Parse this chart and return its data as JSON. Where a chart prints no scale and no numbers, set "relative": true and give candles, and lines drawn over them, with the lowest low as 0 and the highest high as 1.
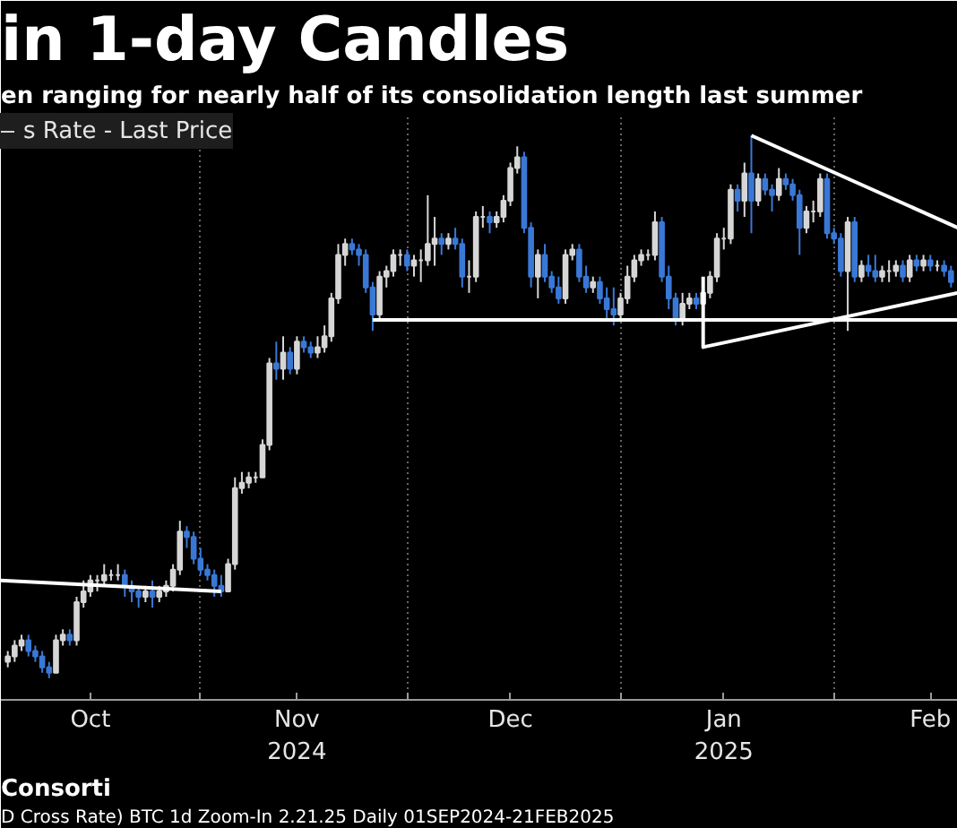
{
  "chart_data": {
    "type": "candlestick",
    "title": "in 1-day Candles",
    "subtitle": "en ranging for nearly half of its consolidation length last summer",
    "relative": true,
    "xlim": [
      "2024-10-03",
      "2025-02-19"
    ],
    "xticks": [
      {
        "value": "2024-10-16",
        "label": "Oct"
      },
      {
        "value": "2024-11-01",
        "label": null
      },
      {
        "value": "2024-11-15",
        "label": "Nov\n2024"
      },
      {
        "value": "2024-12-01",
        "label": null
      },
      {
        "value": "2024-12-16",
        "label": "Dec"
      },
      {
        "value": "2025-01-01",
        "label": null
      },
      {
        "value": "2025-01-16",
        "label": "Jan\n2025"
      },
      {
        "value": "2025-02-01",
        "label": null
      },
      {
        "value": "2025-02-15",
        "label": "Feb"
      }
    ],
    "grid": "x",
    "legend": "top left",
    "colors": [
      "#d6d6d6",
      "#3a78d6"
    ],
    "annotations": [
      "Consorti",
      "D Cross Rate) BTC 1d Zoom-In 2.21.25     Daily 01SEP2024-21FEB2025"
    ],
    "series": [
      {
        "name": "s Rate - Last Price",
        "x": [
          "2024-10-04",
          "2024-10-05",
          "2024-10-06",
          "2024-10-07",
          "2024-10-08",
          "2024-10-09",
          "2024-10-10",
          "2024-10-11",
          "2024-10-12",
          "2024-10-13",
          "2024-10-14",
          "2024-10-15",
          "2024-10-16",
          "2024-10-17",
          "2024-10-18",
          "2024-10-19",
          "2024-10-20",
          "2024-10-21",
          "2024-10-22",
          "2024-10-23",
          "2024-10-24",
          "2024-10-25",
          "2024-10-26",
          "2024-10-27",
          "2024-10-28",
          "2024-10-29",
          "2024-10-30",
          "2024-10-31",
          "2024-11-01",
          "2024-11-02",
          "2024-11-03",
          "2024-11-04",
          "2024-11-05",
          "2024-11-06",
          "2024-11-07",
          "2024-11-08",
          "2024-11-09",
          "2024-11-10",
          "2024-11-11",
          "2024-11-12",
          "2024-11-13",
          "2024-11-14",
          "2024-11-15",
          "2024-11-16",
          "2024-11-17",
          "2024-11-18",
          "2024-11-19",
          "2024-11-20",
          "2024-11-21",
          "2024-11-22",
          "2024-11-23",
          "2024-11-24",
          "2024-11-25",
          "2024-11-26",
          "2024-11-27",
          "2024-11-28",
          "2024-11-29",
          "2024-11-30",
          "2024-12-01",
          "2024-12-02",
          "2024-12-03",
          "2024-12-04",
          "2024-12-05",
          "2024-12-06",
          "2024-12-07",
          "2024-12-08",
          "2024-12-09",
          "2024-12-10",
          "2024-12-11",
          "2024-12-12",
          "2024-12-13",
          "2024-12-14",
          "2024-12-15",
          "2024-12-16",
          "2024-12-17",
          "2024-12-18",
          "2024-12-19",
          "2024-12-20",
          "2024-12-21",
          "2024-12-22",
          "2024-12-23",
          "2024-12-24",
          "2024-12-25",
          "2024-12-26",
          "2024-12-27",
          "2024-12-28",
          "2024-12-29",
          "2024-12-30",
          "2024-12-31",
          "2025-01-01",
          "2025-01-02",
          "2025-01-03",
          "2025-01-04",
          "2025-01-05",
          "2025-01-06",
          "2025-01-07",
          "2025-01-08",
          "2025-01-09",
          "2025-01-10",
          "2025-01-11",
          "2025-01-12",
          "2025-01-13",
          "2025-01-14",
          "2025-01-15",
          "2025-01-16",
          "2025-01-17",
          "2025-01-18",
          "2025-01-19",
          "2025-01-20",
          "2025-01-21",
          "2025-01-22",
          "2025-01-23",
          "2025-01-24",
          "2025-01-25",
          "2025-01-26",
          "2025-01-27",
          "2025-01-28",
          "2025-01-29",
          "2025-01-30",
          "2025-01-31",
          "2025-02-01",
          "2025-02-02",
          "2025-02-03",
          "2025-02-04",
          "2025-02-05",
          "2025-02-06",
          "2025-02-07",
          "2025-02-08",
          "2025-02-09",
          "2025-02-10",
          "2025-02-11",
          "2025-02-12",
          "2025-02-13",
          "2025-02-14",
          "2025-02-15",
          "2025-02-16",
          "2025-02-17",
          "2025-02-18"
        ],
        "ohlc": [
          [
            0.03,
            0.05,
            0.02,
            0.04
          ],
          [
            0.04,
            0.07,
            0.03,
            0.06
          ],
          [
            0.06,
            0.08,
            0.05,
            0.07
          ],
          [
            0.07,
            0.08,
            0.04,
            0.05
          ],
          [
            0.05,
            0.06,
            0.03,
            0.04
          ],
          [
            0.04,
            0.05,
            0.01,
            0.02
          ],
          [
            0.02,
            0.03,
            0.0,
            0.01
          ],
          [
            0.01,
            0.08,
            0.01,
            0.07
          ],
          [
            0.07,
            0.09,
            0.06,
            0.08
          ],
          [
            0.08,
            0.09,
            0.06,
            0.07
          ],
          [
            0.07,
            0.15,
            0.06,
            0.14
          ],
          [
            0.14,
            0.18,
            0.13,
            0.16
          ],
          [
            0.16,
            0.19,
            0.15,
            0.18
          ],
          [
            0.18,
            0.19,
            0.16,
            0.18
          ],
          [
            0.18,
            0.21,
            0.17,
            0.19
          ],
          [
            0.19,
            0.2,
            0.18,
            0.19
          ],
          [
            0.19,
            0.21,
            0.18,
            0.19
          ],
          [
            0.19,
            0.2,
            0.15,
            0.17
          ],
          [
            0.17,
            0.18,
            0.14,
            0.16
          ],
          [
            0.16,
            0.17,
            0.13,
            0.15
          ],
          [
            0.15,
            0.17,
            0.14,
            0.16
          ],
          [
            0.16,
            0.18,
            0.13,
            0.15
          ],
          [
            0.15,
            0.17,
            0.14,
            0.16
          ],
          [
            0.16,
            0.18,
            0.15,
            0.17
          ],
          [
            0.17,
            0.21,
            0.16,
            0.2
          ],
          [
            0.2,
            0.29,
            0.19,
            0.27
          ],
          [
            0.27,
            0.28,
            0.24,
            0.26
          ],
          [
            0.26,
            0.27,
            0.21,
            0.22
          ],
          [
            0.22,
            0.24,
            0.19,
            0.2
          ],
          [
            0.2,
            0.21,
            0.18,
            0.19
          ],
          [
            0.19,
            0.2,
            0.15,
            0.17
          ],
          [
            0.17,
            0.19,
            0.15,
            0.16
          ],
          [
            0.16,
            0.22,
            0.16,
            0.21
          ],
          [
            0.21,
            0.37,
            0.2,
            0.35
          ],
          [
            0.35,
            0.38,
            0.34,
            0.36
          ],
          [
            0.36,
            0.38,
            0.35,
            0.37
          ],
          [
            0.37,
            0.38,
            0.36,
            0.37
          ],
          [
            0.37,
            0.44,
            0.37,
            0.43
          ],
          [
            0.43,
            0.59,
            0.42,
            0.58
          ],
          [
            0.58,
            0.62,
            0.55,
            0.57
          ],
          [
            0.57,
            0.63,
            0.55,
            0.6
          ],
          [
            0.6,
            0.61,
            0.56,
            0.57
          ],
          [
            0.57,
            0.63,
            0.56,
            0.62
          ],
          [
            0.62,
            0.63,
            0.6,
            0.61
          ],
          [
            0.61,
            0.62,
            0.59,
            0.6
          ],
          [
            0.6,
            0.63,
            0.59,
            0.61
          ],
          [
            0.61,
            0.65,
            0.6,
            0.63
          ],
          [
            0.63,
            0.71,
            0.62,
            0.7
          ],
          [
            0.7,
            0.8,
            0.69,
            0.78
          ],
          [
            0.78,
            0.81,
            0.76,
            0.8
          ],
          [
            0.8,
            0.81,
            0.78,
            0.79
          ],
          [
            0.79,
            0.8,
            0.76,
            0.78
          ],
          [
            0.78,
            0.79,
            0.71,
            0.72
          ],
          [
            0.72,
            0.73,
            0.64,
            0.67
          ],
          [
            0.67,
            0.75,
            0.66,
            0.74
          ],
          [
            0.74,
            0.76,
            0.72,
            0.75
          ],
          [
            0.75,
            0.79,
            0.74,
            0.78
          ],
          [
            0.78,
            0.79,
            0.76,
            0.78
          ],
          [
            0.78,
            0.79,
            0.75,
            0.76
          ],
          [
            0.76,
            0.78,
            0.74,
            0.77
          ],
          [
            0.77,
            0.79,
            0.73,
            0.77
          ],
          [
            0.77,
            0.89,
            0.76,
            0.8
          ],
          [
            0.8,
            0.85,
            0.76,
            0.81
          ],
          [
            0.81,
            0.82,
            0.78,
            0.8
          ],
          [
            0.8,
            0.82,
            0.79,
            0.81
          ],
          [
            0.81,
            0.83,
            0.79,
            0.8
          ],
          [
            0.8,
            0.81,
            0.72,
            0.74
          ],
          [
            0.74,
            0.77,
            0.71,
            0.74
          ],
          [
            0.74,
            0.86,
            0.73,
            0.85
          ],
          [
            0.85,
            0.87,
            0.83,
            0.85
          ],
          [
            0.85,
            0.86,
            0.82,
            0.84
          ],
          [
            0.84,
            0.86,
            0.83,
            0.85
          ],
          [
            0.85,
            0.89,
            0.84,
            0.88
          ],
          [
            0.88,
            0.95,
            0.87,
            0.94
          ],
          [
            0.94,
            0.98,
            0.93,
            0.96
          ],
          [
            0.96,
            0.97,
            0.82,
            0.83
          ],
          [
            0.83,
            0.84,
            0.72,
            0.74
          ],
          [
            0.74,
            0.79,
            0.7,
            0.78
          ],
          [
            0.78,
            0.8,
            0.73,
            0.74
          ],
          [
            0.74,
            0.75,
            0.71,
            0.72
          ],
          [
            0.72,
            0.74,
            0.69,
            0.7
          ],
          [
            0.7,
            0.79,
            0.69,
            0.78
          ],
          [
            0.78,
            0.8,
            0.77,
            0.79
          ],
          [
            0.79,
            0.8,
            0.73,
            0.74
          ],
          [
            0.74,
            0.76,
            0.71,
            0.72
          ],
          [
            0.72,
            0.74,
            0.71,
            0.73
          ],
          [
            0.73,
            0.74,
            0.69,
            0.7
          ],
          [
            0.7,
            0.72,
            0.66,
            0.68
          ],
          [
            0.68,
            0.72,
            0.65,
            0.67
          ],
          [
            0.67,
            0.71,
            0.66,
            0.7
          ],
          [
            0.7,
            0.76,
            0.69,
            0.74
          ],
          [
            0.74,
            0.78,
            0.73,
            0.77
          ],
          [
            0.77,
            0.79,
            0.76,
            0.78
          ],
          [
            0.78,
            0.79,
            0.77,
            0.78
          ],
          [
            0.78,
            0.86,
            0.77,
            0.84
          ],
          [
            0.84,
            0.85,
            0.73,
            0.74
          ],
          [
            0.74,
            0.76,
            0.68,
            0.7
          ],
          [
            0.7,
            0.71,
            0.65,
            0.66
          ],
          [
            0.66,
            0.71,
            0.65,
            0.69
          ],
          [
            0.69,
            0.71,
            0.68,
            0.7
          ],
          [
            0.7,
            0.71,
            0.68,
            0.69
          ],
          [
            0.69,
            0.72,
            0.61,
            0.71
          ],
          [
            0.71,
            0.75,
            0.7,
            0.74
          ],
          [
            0.74,
            0.82,
            0.73,
            0.81
          ],
          [
            0.81,
            0.83,
            0.79,
            0.81
          ],
          [
            0.81,
            0.91,
            0.8,
            0.9
          ],
          [
            0.9,
            0.91,
            0.86,
            0.88
          ],
          [
            0.88,
            0.95,
            0.85,
            0.93
          ],
          [
            0.93,
            1.0,
            0.82,
            0.88
          ],
          [
            0.88,
            0.93,
            0.87,
            0.92
          ],
          [
            0.92,
            0.93,
            0.89,
            0.9
          ],
          [
            0.9,
            0.91,
            0.86,
            0.89
          ],
          [
            0.89,
            0.94,
            0.88,
            0.92
          ],
          [
            0.92,
            0.93,
            0.9,
            0.91
          ],
          [
            0.91,
            0.92,
            0.88,
            0.89
          ],
          [
            0.89,
            0.9,
            0.78,
            0.83
          ],
          [
            0.83,
            0.87,
            0.82,
            0.86
          ],
          [
            0.86,
            0.88,
            0.84,
            0.86
          ],
          [
            0.86,
            0.93,
            0.85,
            0.92
          ],
          [
            0.92,
            0.93,
            0.81,
            0.82
          ],
          [
            0.82,
            0.83,
            0.8,
            0.81
          ],
          [
            0.81,
            0.82,
            0.74,
            0.75
          ],
          [
            0.75,
            0.85,
            0.64,
            0.84
          ],
          [
            0.84,
            0.85,
            0.73,
            0.74
          ],
          [
            0.74,
            0.77,
            0.73,
            0.76
          ],
          [
            0.76,
            0.78,
            0.74,
            0.75
          ],
          [
            0.75,
            0.78,
            0.73,
            0.74
          ],
          [
            0.74,
            0.76,
            0.73,
            0.75
          ],
          [
            0.75,
            0.77,
            0.73,
            0.75
          ],
          [
            0.75,
            0.77,
            0.74,
            0.76
          ],
          [
            0.76,
            0.77,
            0.73,
            0.74
          ],
          [
            0.74,
            0.78,
            0.73,
            0.77
          ],
          [
            0.77,
            0.78,
            0.75,
            0.76
          ],
          [
            0.76,
            0.78,
            0.75,
            0.77
          ],
          [
            0.77,
            0.78,
            0.75,
            0.76
          ],
          [
            0.76,
            0.77,
            0.75,
            0.76
          ],
          [
            0.76,
            0.77,
            0.74,
            0.75
          ],
          [
            0.75,
            0.76,
            0.72,
            0.73
          ]
        ]
      },
      {
        "type": "line",
        "color": "#ffffff",
        "x": [
          "2024-10-03",
          "2024-11-04"
        ],
        "values": [
          0.18,
          0.16
        ]
      },
      {
        "type": "line",
        "color": "#ffffff",
        "x": [
          "2024-11-26",
          "2025-02-19"
        ],
        "values": [
          0.66,
          0.66
        ]
      },
      {
        "type": "line",
        "color": "#ffffff",
        "x": [
          "2025-01-20",
          "2025-02-19"
        ],
        "values": [
          1.0,
          0.83
        ]
      },
      {
        "type": "line",
        "color": "#ffffff",
        "x": [
          "2025-01-13",
          "2025-01-13",
          "2025-02-19"
        ],
        "values": [
          0.74,
          0.61,
          0.71
        ]
      }
    ]
  }
}
